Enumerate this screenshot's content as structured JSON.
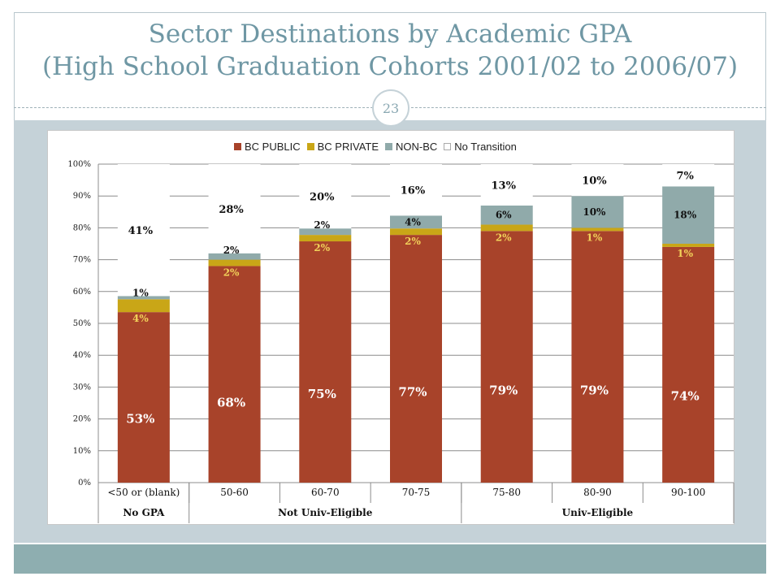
{
  "slide": {
    "title_line1": "Sector Destinations by Academic GPA",
    "title_line2": "(High School Graduation Cohorts 2001/02 to 2006/07)",
    "page_number": "23"
  },
  "colors": {
    "bc_public": "#a8432a",
    "bc_private": "#c9a617",
    "non_bc": "#90aaaa",
    "no_transition": "#ffffff",
    "title": "#6f97a4"
  },
  "chart_data": {
    "type": "bar",
    "stacked": true,
    "categories": [
      "<50 or (blank)",
      "50-60",
      "60-70",
      "70-75",
      "75-80",
      "80-90",
      "90-100"
    ],
    "groups": [
      {
        "label": "No GPA",
        "categories": [
          "<50 or (blank)"
        ]
      },
      {
        "label": "Not Univ-Eligible",
        "categories": [
          "50-60",
          "60-70",
          "70-75"
        ]
      },
      {
        "label": "Univ-Eligible",
        "categories": [
          "75-80",
          "80-90",
          "90-100"
        ]
      }
    ],
    "series": [
      {
        "name": "BC PUBLIC",
        "values": [
          53,
          68,
          75,
          77,
          79,
          79,
          74
        ],
        "labels": [
          "53%",
          "68%",
          "75%",
          "77%",
          "79%",
          "79%",
          "74%"
        ]
      },
      {
        "name": "BC PRIVATE",
        "values": [
          4,
          2,
          2,
          2,
          2,
          1,
          1
        ],
        "labels": [
          "4%",
          "2%",
          "2%",
          "2%",
          "2%",
          "1%",
          "1%"
        ]
      },
      {
        "name": "NON-BC",
        "values": [
          1,
          2,
          2,
          4,
          6,
          10,
          18
        ],
        "labels": [
          "1%",
          "2%",
          "2%",
          "4%",
          "6%",
          "10%",
          "18%"
        ]
      },
      {
        "name": "No Transition",
        "values": [
          41,
          28,
          20,
          16,
          13,
          10,
          7
        ],
        "labels": [
          "41%",
          "28%",
          "20%",
          "16%",
          "13%",
          "10%",
          "7%"
        ]
      }
    ],
    "y_ticks": [
      "0%",
      "10%",
      "20%",
      "30%",
      "40%",
      "50%",
      "60%",
      "70%",
      "80%",
      "90%",
      "100%"
    ],
    "ylim": [
      0,
      100
    ],
    "grid": true,
    "legend_position": "top"
  }
}
